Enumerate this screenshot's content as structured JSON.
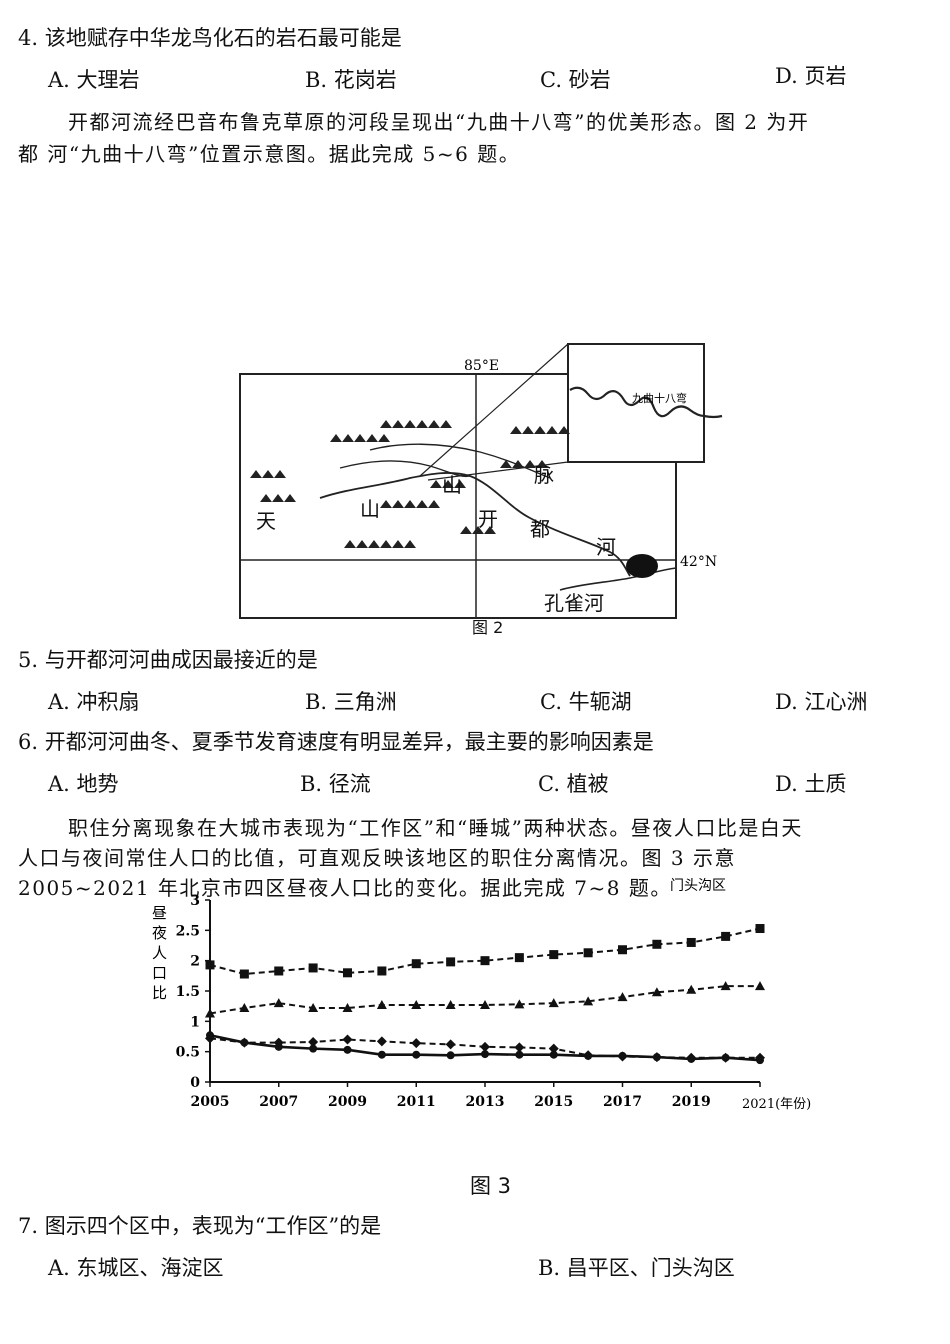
{
  "q4": {
    "stem": "4. 该地赋存中华龙鸟化石的岩石最可能是",
    "options": [
      "A. 大理岩",
      "B. 花岗岩",
      "C. 砂岩",
      "D. 页岩"
    ]
  },
  "intro_5_6": {
    "line1": "开都河流经巴音布鲁克草原的河段呈现出“九曲十八弯”的优美形态。图 2 为开",
    "line2": "都 河“九曲十八弯”位置示意图。据此完成 5~6 题。"
  },
  "map": {
    "meridian_label": "85°E",
    "parallel_label": "42°N",
    "inset_label": "九曲十八弯",
    "place_labels": [
      "天",
      "山",
      "山",
      "开",
      "都",
      "河",
      "脉",
      "孔雀河"
    ],
    "caption": "图 2"
  },
  "q5": {
    "stem": "5.   与开都河河曲成因最接近的是",
    "options": [
      "A. 冲积扇",
      "B. 三角洲",
      "C. 牛轭湖",
      "D. 江心洲"
    ]
  },
  "q6": {
    "stem": "6.   开都河河曲冬、夏季节发育速度有明显差异，最主要的影响因素是",
    "options": [
      "A. 地势",
      "B. 径流",
      "C. 植被",
      "D. 土质"
    ]
  },
  "intro_7_8": {
    "line1": "职住分离现象在大城市表现为“工作区”和“睡城”两种状态。昼夜人口比是白天",
    "line2": "人口与夜间常住人口的比值，可直观反映该地区的职住分离情况。图 3 示意",
    "line3": "2005~2021  年北京市四区昼夜人口比的变化。据此完成 7~8 题。",
    "legend_fragment": "门头沟区"
  },
  "chart_data": {
    "type": "line",
    "ylabel": "昼夜人口比",
    "xlabel": "2021(年份)",
    "x": [
      2005,
      2006,
      2007,
      2008,
      2009,
      2010,
      2011,
      2012,
      2013,
      2014,
      2015,
      2016,
      2017,
      2018,
      2019,
      2020,
      2021
    ],
    "x_tick_labels": [
      "2005",
      "2007",
      "2009",
      "2011",
      "2013",
      "2015",
      "2017",
      "2019",
      "2021(年份)"
    ],
    "y_tick_labels": [
      "0",
      "0.5",
      "1",
      "1.5",
      "2",
      "2.5",
      "3"
    ],
    "ylim": [
      0,
      3
    ],
    "series": [
      {
        "marker": "square",
        "dash": true,
        "values": [
          1.93,
          1.78,
          1.83,
          1.88,
          1.8,
          1.83,
          1.95,
          1.98,
          2.0,
          2.05,
          2.1,
          2.13,
          2.18,
          2.27,
          2.3,
          2.4,
          2.53
        ]
      },
      {
        "marker": "triangle",
        "dash": true,
        "values": [
          1.13,
          1.22,
          1.3,
          1.22,
          1.22,
          1.27,
          1.27,
          1.27,
          1.27,
          1.28,
          1.3,
          1.33,
          1.4,
          1.48,
          1.52,
          1.58,
          1.58
        ]
      },
      {
        "marker": "diamond",
        "dash": true,
        "values": [
          0.72,
          0.65,
          0.65,
          0.66,
          0.7,
          0.67,
          0.64,
          0.62,
          0.58,
          0.57,
          0.55,
          0.44,
          0.42,
          0.41,
          0.4,
          0.4,
          0.4
        ]
      },
      {
        "marker": "circle",
        "dash": false,
        "values": [
          0.77,
          0.65,
          0.58,
          0.55,
          0.53,
          0.45,
          0.45,
          0.44,
          0.46,
          0.45,
          0.45,
          0.43,
          0.43,
          0.41,
          0.38,
          0.4,
          0.36
        ]
      }
    ],
    "caption": "图 3"
  },
  "q7": {
    "stem": "7.   图示四个区中，表现为“工作区”的是",
    "options": [
      "A. 东城区、海淀区",
      "B. 昌平区、门头沟区"
    ]
  }
}
